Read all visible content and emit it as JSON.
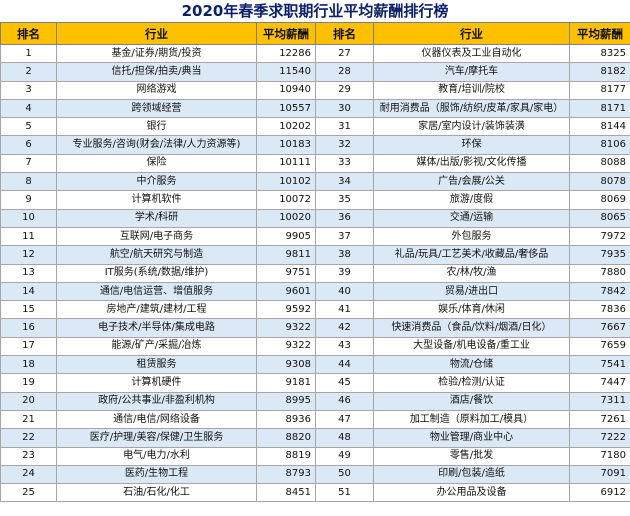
{
  "title": "2020年春季求职期行业平均薪酬排行榜",
  "headers": {
    "rank": "排名",
    "industry": "行业",
    "salary": "平均薪酬",
    "rank2": "排名",
    "industry2": "行业",
    "salary2": "平均薪酬"
  },
  "rows": [
    {
      "r1": "1",
      "i1": "基金/证券/期货/投资",
      "s1": "12286",
      "r2": "27",
      "i2": "仪器仪表及工业自动化",
      "s2": "8325"
    },
    {
      "r1": "2",
      "i1": "信托/担保/拍卖/典当",
      "s1": "11540",
      "r2": "28",
      "i2": "汽车/摩托车",
      "s2": "8182"
    },
    {
      "r1": "3",
      "i1": "网络游戏",
      "s1": "10940",
      "r2": "29",
      "i2": "教育/培训/院校",
      "s2": "8177"
    },
    {
      "r1": "4",
      "i1": "跨领域经营",
      "s1": "10557",
      "r2": "30",
      "i2": "耐用消费品（服饰/纺织/皮革/家具/家电）",
      "s2": "8171"
    },
    {
      "r1": "5",
      "i1": "银行",
      "s1": "10202",
      "r2": "31",
      "i2": "家居/室内设计/装饰装潢",
      "s2": "8144"
    },
    {
      "r1": "6",
      "i1": "专业服务/咨询(财会/法律/人力资源等)",
      "s1": "10183",
      "r2": "32",
      "i2": "环保",
      "s2": "8106"
    },
    {
      "r1": "7",
      "i1": "保险",
      "s1": "10111",
      "r2": "33",
      "i2": "媒体/出版/影视/文化传播",
      "s2": "8088"
    },
    {
      "r1": "8",
      "i1": "中介服务",
      "s1": "10102",
      "r2": "34",
      "i2": "广告/会展/公关",
      "s2": "8078"
    },
    {
      "r1": "9",
      "i1": "计算机软件",
      "s1": "10072",
      "r2": "35",
      "i2": "旅游/度假",
      "s2": "8069"
    },
    {
      "r1": "10",
      "i1": "学术/科研",
      "s1": "10020",
      "r2": "36",
      "i2": "交通/运输",
      "s2": "8065"
    },
    {
      "r1": "11",
      "i1": "互联网/电子商务",
      "s1": "9905",
      "r2": "37",
      "i2": "外包服务",
      "s2": "7972"
    },
    {
      "r1": "12",
      "i1": "航空/航天研究与制造",
      "s1": "9811",
      "r2": "38",
      "i2": "礼品/玩具/工艺美术/收藏品/奢侈品",
      "s2": "7935"
    },
    {
      "r1": "13",
      "i1": "IT服务(系统/数据/维护)",
      "s1": "9751",
      "r2": "39",
      "i2": "农/林/牧/渔",
      "s2": "7880"
    },
    {
      "r1": "14",
      "i1": "通信/电信运营、增值服务",
      "s1": "9601",
      "r2": "40",
      "i2": "贸易/进出口",
      "s2": "7842"
    },
    {
      "r1": "15",
      "i1": "房地产/建筑/建材/工程",
      "s1": "9592",
      "r2": "41",
      "i2": "娱乐/体育/休闲",
      "s2": "7836"
    },
    {
      "r1": "16",
      "i1": "电子技术/半导体/集成电路",
      "s1": "9322",
      "r2": "42",
      "i2": "快速消费品（食品/饮料/烟酒/日化）",
      "s2": "7667"
    },
    {
      "r1": "17",
      "i1": "能源/矿产/采掘/冶炼",
      "s1": "9322",
      "r2": "43",
      "i2": "大型设备/机电设备/重工业",
      "s2": "7659"
    },
    {
      "r1": "18",
      "i1": "租赁服务",
      "s1": "9308",
      "r2": "44",
      "i2": "物流/仓储",
      "s2": "7541"
    },
    {
      "r1": "19",
      "i1": "计算机硬件",
      "s1": "9181",
      "r2": "45",
      "i2": "检验/检测/认证",
      "s2": "7447"
    },
    {
      "r1": "20",
      "i1": "政府/公共事业/非盈利机构",
      "s1": "8995",
      "r2": "46",
      "i2": "酒店/餐饮",
      "s2": "7311"
    },
    {
      "r1": "21",
      "i1": "通信/电信/网络设备",
      "s1": "8936",
      "r2": "47",
      "i2": "加工制造（原料加工/模具）",
      "s2": "7261"
    },
    {
      "r1": "22",
      "i1": "医疗/护理/美容/保健/卫生服务",
      "s1": "8820",
      "r2": "48",
      "i2": "物业管理/商业中心",
      "s2": "7222"
    },
    {
      "r1": "23",
      "i1": "电气/电力/水利",
      "s1": "8819",
      "r2": "49",
      "i2": "零售/批发",
      "s2": "7180"
    },
    {
      "r1": "24",
      "i1": "医药/生物工程",
      "s1": "8793",
      "r2": "50",
      "i2": "印刷/包装/造纸",
      "s2": "7091"
    },
    {
      "r1": "25",
      "i1": "石油/石化/化工",
      "s1": "8451",
      "r2": "51",
      "i2": "办公用品及设备",
      "s2": "6912"
    }
  ],
  "colors": {
    "header_bg": "#ffc000",
    "row_shade": "#dbe9f7",
    "title_color": "#0b1f6b"
  }
}
